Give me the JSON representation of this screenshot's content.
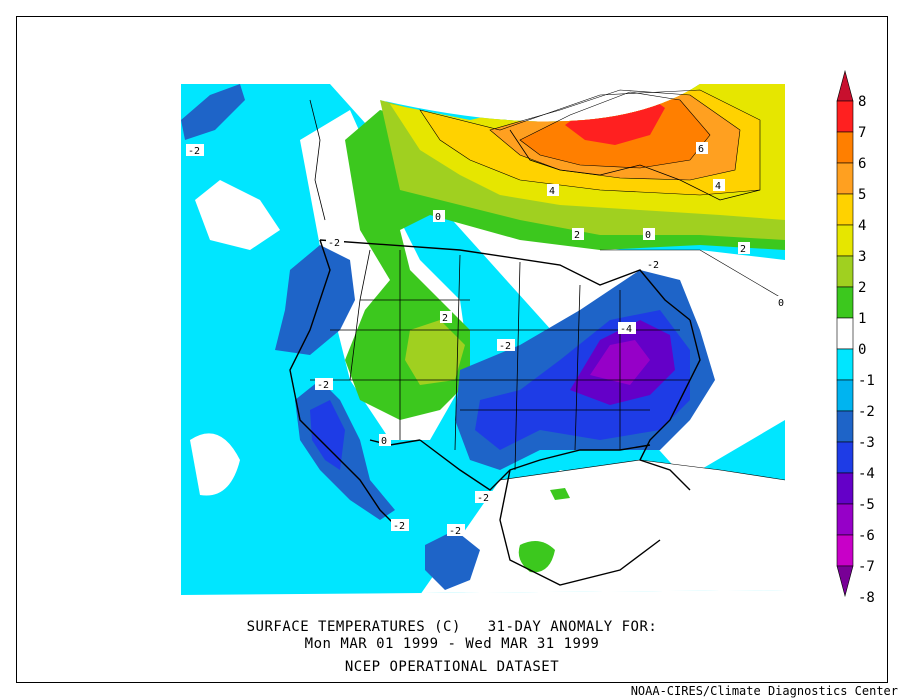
{
  "caption": {
    "line1": "SURFACE TEMPERATURES (C)   31-DAY ANOMALY FOR:",
    "line2": "Mon MAR 01 1999 - Wed MAR 31 1999",
    "line3": "NCEP OPERATIONAL DATASET"
  },
  "credit": "NOAA-CIRES/Climate Diagnostics Center",
  "legend": {
    "labels": [
      "8",
      "7",
      "6",
      "5",
      "4",
      "3",
      "2",
      "1",
      "0",
      "-1",
      "-2",
      "-3",
      "-4",
      "-5",
      "-6",
      "-7",
      "-8"
    ],
    "colors": [
      "#c8102e",
      "#ff2020",
      "#ff7f00",
      "#ffa020",
      "#ffd200",
      "#e6e600",
      "#a0d020",
      "#3cc81e",
      "#ffffff",
      "#00e6ff",
      "#00b4f0",
      "#1e64c8",
      "#1e3ce6",
      "#6400c8",
      "#9600c8",
      "#c800c8",
      "#780096"
    ]
  },
  "contour_labels": [
    {
      "text": "-2",
      "id": "c1"
    },
    {
      "text": "-2",
      "id": "c2"
    },
    {
      "text": "-2",
      "id": "c3"
    },
    {
      "text": "-2",
      "id": "c4"
    },
    {
      "text": "-2",
      "id": "c5"
    },
    {
      "text": "-2",
      "id": "c6"
    },
    {
      "text": "-2",
      "id": "c7"
    },
    {
      "text": "-2",
      "id": "c8"
    },
    {
      "text": "-4",
      "id": "c9"
    },
    {
      "text": "0",
      "id": "c10"
    },
    {
      "text": "0",
      "id": "c11"
    },
    {
      "text": "0",
      "id": "c12"
    },
    {
      "text": "0",
      "id": "c13"
    },
    {
      "text": "2",
      "id": "c14"
    },
    {
      "text": "2",
      "id": "c15"
    },
    {
      "text": "2",
      "id": "c16"
    },
    {
      "text": "4",
      "id": "c17"
    },
    {
      "text": "4",
      "id": "c18"
    },
    {
      "text": "6",
      "id": "c19"
    }
  ]
}
